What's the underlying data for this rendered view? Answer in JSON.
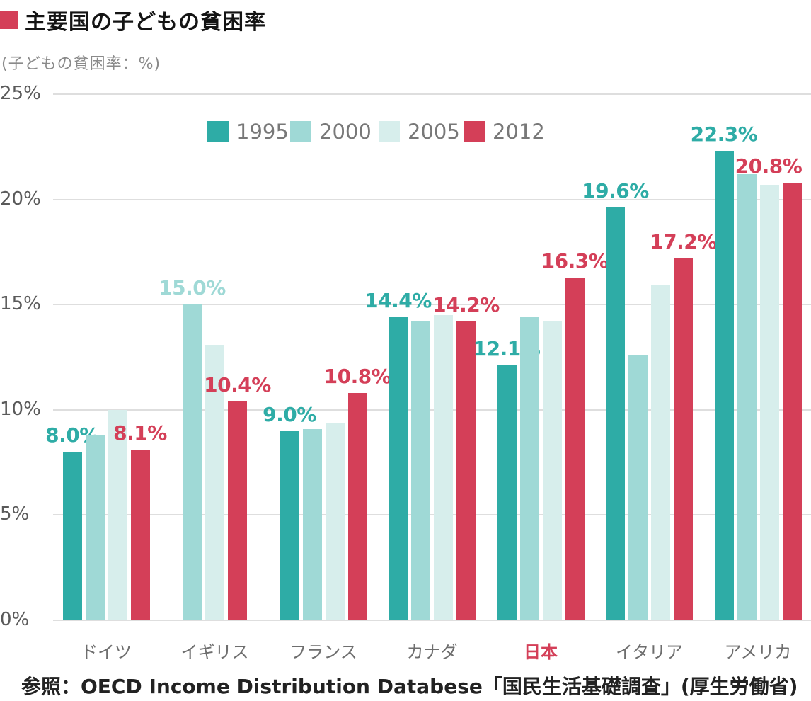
{
  "title": "主要国の子どもの貧困率",
  "subtitle": "(子どもの貧困率：%)",
  "source": "参照：OECD Income Distribution Databese「国民生活基礎調査」(厚生労働省)",
  "colors": {
    "accent_red": "#d43f58",
    "teal_1995": "#2eaca6",
    "light_teal_2000": "#9fd9d6",
    "pale_teal_2005": "#d7eeec",
    "red_2012": "#d43f58",
    "gridline": "#dedede",
    "axis_text": "#5a5a5a",
    "category_text": "#6e6e6e",
    "legend_text": "#787878"
  },
  "chart_data": {
    "type": "bar",
    "title": "主要国の子どもの貧困率",
    "ylabel": "子どもの貧困率：%",
    "ylim": [
      0,
      25
    ],
    "ytick_values": [
      0,
      5,
      10,
      15,
      20,
      25
    ],
    "ytick_labels": [
      "0%",
      "5%",
      "10%",
      "15%",
      "20%",
      "25%"
    ],
    "grid": "horizontal",
    "legend_position": "top-center",
    "categories": [
      "ドイツ",
      "イギリス",
      "フランス",
      "カナダ",
      "日本",
      "イタリア",
      "アメリカ"
    ],
    "highlight_category": "日本",
    "series": [
      {
        "name": "1995",
        "color": "#2eaca6",
        "values": [
          8.0,
          null,
          9.0,
          14.4,
          12.1,
          19.6,
          22.3
        ],
        "labels": [
          "8.0%",
          null,
          "9.0%",
          "14.4%",
          "12.1%",
          "19.6%",
          "22.3%"
        ]
      },
      {
        "name": "2000",
        "color": "#9fd9d6",
        "values": [
          8.8,
          15.0,
          9.1,
          14.2,
          14.4,
          12.6,
          21.2
        ],
        "labels": [
          null,
          "15.0%",
          null,
          null,
          null,
          null,
          null
        ]
      },
      {
        "name": "2005",
        "color": "#d7eeec",
        "values": [
          10.0,
          13.1,
          9.4,
          14.5,
          14.2,
          15.9,
          20.7
        ],
        "labels": [
          null,
          null,
          null,
          null,
          null,
          null,
          null
        ]
      },
      {
        "name": "2012",
        "color": "#d43f58",
        "values": [
          8.1,
          10.4,
          10.8,
          14.2,
          16.3,
          17.2,
          20.8
        ],
        "labels": [
          "8.1%",
          "10.4%",
          "10.8%",
          "14.2%",
          "16.3%",
          "17.2%",
          "20.8%"
        ]
      }
    ]
  }
}
